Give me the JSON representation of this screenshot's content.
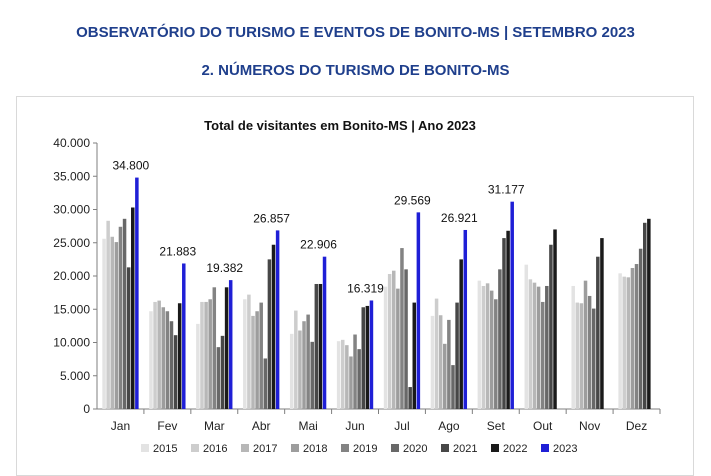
{
  "header": {
    "title": "OBSERVATÓRIO DO TURISMO E EVENTOS DE BONITO-MS | SETEMBRO 2023",
    "subtitle": "2. NÚMEROS DO TURISMO DE BONITO-MS"
  },
  "chart_data": {
    "type": "bar",
    "title": "Total de visitantes em Bonito-MS | Ano 2023",
    "categories": [
      "Jan",
      "Fev",
      "Mar",
      "Abr",
      "Mai",
      "Jun",
      "Jul",
      "Ago",
      "Set",
      "Out",
      "Nov",
      "Dez"
    ],
    "ylim": [
      0,
      40000
    ],
    "yticks": [
      "0",
      "5.000",
      "10.000",
      "15.000",
      "20.000",
      "25.000",
      "30.000",
      "35.000",
      "40.000"
    ],
    "grid": false,
    "legend_position": "bottom",
    "series": [
      {
        "name": "2015",
        "color": "#e3e3e3",
        "values": [
          25600,
          14700,
          12800,
          16500,
          11300,
          10200,
          18400,
          14000,
          19300,
          21700,
          18500,
          20400
        ]
      },
      {
        "name": "2016",
        "color": "#cdcdcd",
        "values": [
          28300,
          16100,
          16100,
          17200,
          14800,
          10400,
          20300,
          16600,
          18500,
          19500,
          16000,
          19900
        ]
      },
      {
        "name": "2017",
        "color": "#b7b7b7",
        "values": [
          25900,
          16300,
          16100,
          14000,
          11800,
          9600,
          20800,
          14100,
          18900,
          19000,
          15900,
          19800
        ]
      },
      {
        "name": "2018",
        "color": "#9d9d9d",
        "values": [
          25100,
          15300,
          16500,
          14700,
          13200,
          7900,
          18100,
          9800,
          17800,
          18400,
          19300,
          21200
        ]
      },
      {
        "name": "2019",
        "color": "#838383",
        "values": [
          27400,
          14700,
          18300,
          16000,
          14200,
          11200,
          24200,
          13400,
          16500,
          16100,
          17000,
          21800
        ]
      },
      {
        "name": "2020",
        "color": "#686868",
        "values": [
          28600,
          13200,
          9300,
          7600,
          10100,
          9000,
          21000,
          6600,
          21000,
          18500,
          15100,
          24100
        ]
      },
      {
        "name": "2021",
        "color": "#474747",
        "values": [
          21300,
          11100,
          11000,
          22500,
          18800,
          15300,
          3300,
          16000,
          25700,
          24700,
          22900,
          28000
        ]
      },
      {
        "name": "2022",
        "color": "#1a1a1a",
        "values": [
          30300,
          15900,
          18300,
          24700,
          18800,
          15500,
          16000,
          22500,
          26800,
          27000,
          25700,
          28600
        ]
      },
      {
        "name": "2023",
        "color": "#1f1fd6",
        "values": [
          34800,
          21883,
          19382,
          26857,
          22906,
          16319,
          29569,
          26921,
          31177,
          null,
          null,
          null
        ]
      }
    ],
    "data_labels_2023": [
      "34.800",
      "21.883",
      "19.382",
      "26.857",
      "22.906",
      "16.319",
      "29.569",
      "26.921",
      "31.177",
      "",
      "",
      ""
    ]
  }
}
